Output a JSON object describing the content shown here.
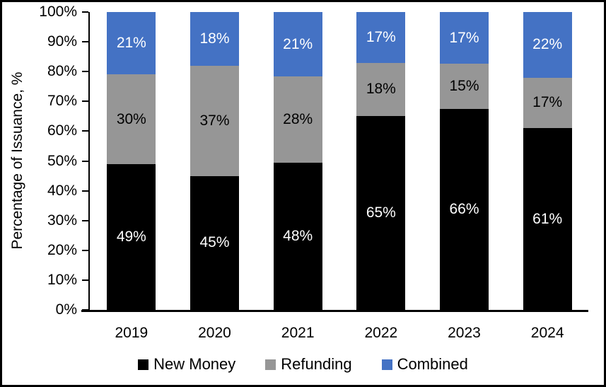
{
  "chart_data": {
    "type": "bar",
    "stacked": true,
    "orientation": "vertical",
    "title": "",
    "xlabel": "",
    "ylabel": "Percentage of Issuance, %",
    "categories": [
      "2019",
      "2020",
      "2021",
      "2022",
      "2023",
      "2024"
    ],
    "series": [
      {
        "name": "New Money",
        "color": "#000000",
        "label_color": "#ffffff",
        "values": [
          49,
          45,
          48,
          65,
          66,
          61
        ],
        "labels": [
          "49%",
          "45%",
          "48%",
          "65%",
          "66%",
          "61%"
        ]
      },
      {
        "name": "Refunding",
        "color": "#969696",
        "label_color": "#000000",
        "values": [
          30,
          37,
          28,
          18,
          15,
          17
        ],
        "labels": [
          "30%",
          "37%",
          "28%",
          "18%",
          "15%",
          "17%"
        ]
      },
      {
        "name": "Combined",
        "color": "#4472C4",
        "label_color": "#ffffff",
        "values": [
          21,
          18,
          21,
          17,
          17,
          22
        ],
        "labels": [
          "21%",
          "18%",
          "21%",
          "17%",
          "17%",
          "22%"
        ]
      }
    ],
    "ylim": [
      0,
      100
    ],
    "y_ticks": [
      "0%",
      "10%",
      "20%",
      "30%",
      "40%",
      "50%",
      "60%",
      "70%",
      "80%",
      "90%",
      "100%"
    ],
    "grid": false,
    "legend_position": "bottom",
    "axis_color": "#000000",
    "background_color": "#ffffff",
    "border_color": "#000000"
  }
}
